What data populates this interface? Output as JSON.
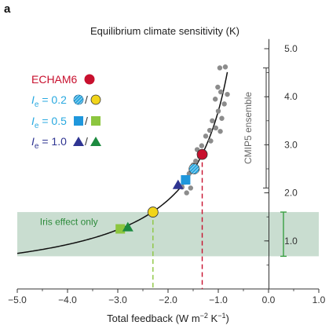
{
  "panel_label": "a",
  "chart_data": {
    "type": "scatter",
    "title": "Equilibrium climate sensitivity (K)",
    "xlabel_main": "Total feedback (W m",
    "xlabel_sup1": "−2",
    "xlabel_mid": " K",
    "xlabel_sup2": "−1",
    "xlabel_end": ")",
    "xlim": [
      -5.0,
      1.0
    ],
    "ylim": [
      0,
      5.4
    ],
    "xticks": [
      -5.0,
      -4.0,
      -3.0,
      -2.0,
      -1.0,
      0.0,
      1.0
    ],
    "xtick_labels": [
      "−5.0",
      "−4.0",
      "−3.0",
      "−2.0",
      "−1.0",
      "0.0",
      "1.0"
    ],
    "yticks": [
      1.0,
      2.0,
      3.0,
      4.0,
      5.0
    ],
    "ytick_labels": [
      "1.0",
      "2.0",
      "3.0",
      "4.0",
      "5.0"
    ],
    "y_axis_side": "right",
    "curve": {
      "formula": "ECS = 3.7 / (-feedback)",
      "forcing": 3.7
    },
    "iris_band": {
      "label": "Iris effect only",
      "ymin": 0.68,
      "ymax": 1.6,
      "color": "#c9ddd0",
      "bracket_color": "#3aa043"
    },
    "cmip5_range": {
      "label": "CMIP5 ensemble",
      "ymin": 2.1,
      "ymax": 4.6
    },
    "cmip5_points": [
      {
        "x": -0.97,
        "y": 4.6
      },
      {
        "x": -0.86,
        "y": 4.62
      },
      {
        "x": -1.01,
        "y": 4.2
      },
      {
        "x": -0.95,
        "y": 4.1
      },
      {
        "x": -0.82,
        "y": 4.05
      },
      {
        "x": -1.06,
        "y": 3.95
      },
      {
        "x": -0.88,
        "y": 3.85
      },
      {
        "x": -1.0,
        "y": 3.7
      },
      {
        "x": -0.93,
        "y": 3.55
      },
      {
        "x": -1.12,
        "y": 3.5
      },
      {
        "x": -1.17,
        "y": 3.3
      },
      {
        "x": -1.05,
        "y": 3.35
      },
      {
        "x": -0.96,
        "y": 3.28
      },
      {
        "x": -1.25,
        "y": 3.18
      },
      {
        "x": -1.15,
        "y": 3.08
      },
      {
        "x": -1.33,
        "y": 2.98
      },
      {
        "x": -1.42,
        "y": 2.9
      },
      {
        "x": -1.37,
        "y": 2.75
      },
      {
        "x": -1.45,
        "y": 2.66
      },
      {
        "x": -1.5,
        "y": 2.58
      },
      {
        "x": -1.54,
        "y": 2.45
      },
      {
        "x": -1.58,
        "y": 2.4
      },
      {
        "x": -1.62,
        "y": 2.32
      },
      {
        "x": -1.67,
        "y": 2.22
      },
      {
        "x": -1.72,
        "y": 2.12
      },
      {
        "x": -1.55,
        "y": 2.1
      },
      {
        "x": -1.63,
        "y": 2.0
      }
    ],
    "legend": {
      "placement": "top-left",
      "title": "ECHAM6",
      "rows": [
        {
          "ie_value": "0.2",
          "sym1": "circle-hatched",
          "sym2": "circle",
          "color1": "#2aa7df",
          "color2": "#f2d51a"
        },
        {
          "ie_value": "0.5",
          "sym1": "square",
          "sym2": "square",
          "color1": "#1f97dc",
          "color2": "#8cc63f"
        },
        {
          "ie_value": "1.0",
          "sym1": "triangle",
          "sym2": "triangle",
          "color1": "#2f3592",
          "color2": "#1c8a3f"
        }
      ],
      "ie_letter": "I",
      "ie_sub": "e",
      "eq": " = ",
      "slash": "/"
    },
    "series": [
      {
        "name": "ECHAM6",
        "marker": "circle",
        "color": "#c8102e",
        "points": [
          {
            "x": -1.32,
            "y": 2.8
          }
        ]
      },
      {
        "name": "Ie = 0.2",
        "marker": "circle",
        "points": [
          {
            "x": -1.48,
            "y": 2.5,
            "color": "#2aa7df",
            "hatched": true
          },
          {
            "x": -2.3,
            "y": 1.6,
            "color": "#f2d51a"
          }
        ]
      },
      {
        "name": "Ie = 0.5",
        "marker": "square",
        "points": [
          {
            "x": -1.65,
            "y": 2.27,
            "color": "#1f97dc"
          },
          {
            "x": -2.95,
            "y": 1.25,
            "color": "#8cc63f"
          }
        ]
      },
      {
        "name": "Ie = 1.0",
        "marker": "triangle",
        "points": [
          {
            "x": -1.8,
            "y": 2.16,
            "color": "#2f3592"
          },
          {
            "x": -2.8,
            "y": 1.28,
            "color": "#1c8a3f"
          }
        ]
      }
    ],
    "dashed_lines": [
      {
        "x": -1.32,
        "y": 2.8,
        "color": "#c8102e"
      },
      {
        "x": -2.3,
        "y": 1.6,
        "color": "#8cc63f"
      }
    ]
  }
}
